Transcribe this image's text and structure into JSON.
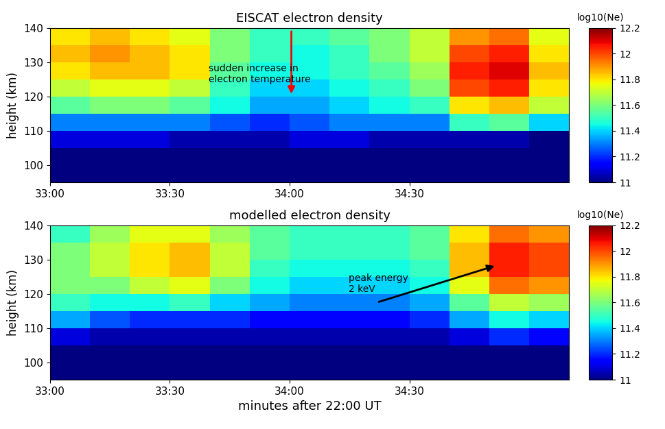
{
  "chart_data": [
    {
      "type": "heatmap",
      "title": "EISCAT electron density",
      "y_label": "height (km)",
      "color": "jet",
      "x_edges": [
        1980,
        1990,
        2000,
        2010,
        2020,
        2030,
        2040,
        2050,
        2060,
        2070,
        2080,
        2090,
        2100,
        2110
      ],
      "y_edges": [
        95,
        100,
        105,
        110,
        115,
        120,
        125,
        130,
        135,
        140
      ],
      "cells": [
        [
          11.0,
          11.0,
          11.0,
          11.0,
          11.0,
          11.0,
          11.0,
          11.0,
          11.0,
          11.0,
          11.0,
          11.0,
          11.0
        ],
        [
          11.0,
          11.0,
          11.0,
          11.0,
          11.0,
          11.0,
          11.0,
          11.0,
          11.0,
          11.0,
          11.0,
          11.0,
          11.0
        ],
        [
          11.1,
          11.1,
          11.1,
          11.05,
          11.05,
          11.05,
          11.1,
          11.1,
          11.05,
          11.05,
          11.05,
          11.05,
          11.0
        ],
        [
          11.3,
          11.3,
          11.3,
          11.3,
          11.25,
          11.2,
          11.25,
          11.3,
          11.3,
          11.3,
          11.5,
          11.55,
          11.4
        ],
        [
          11.55,
          11.6,
          11.6,
          11.55,
          11.45,
          11.35,
          11.35,
          11.4,
          11.45,
          11.5,
          11.8,
          11.85,
          11.7
        ],
        [
          11.7,
          11.75,
          11.75,
          11.7,
          11.5,
          11.4,
          11.4,
          11.45,
          11.5,
          11.6,
          12.0,
          12.05,
          11.8
        ],
        [
          11.8,
          11.85,
          11.85,
          11.8,
          11.55,
          11.45,
          11.45,
          11.5,
          11.55,
          11.65,
          12.05,
          12.1,
          11.85
        ],
        [
          11.85,
          11.9,
          11.85,
          11.8,
          11.6,
          11.5,
          11.45,
          11.5,
          11.6,
          11.7,
          12.0,
          12.05,
          11.8
        ],
        [
          11.8,
          11.85,
          11.8,
          11.75,
          11.6,
          11.5,
          11.5,
          11.55,
          11.6,
          11.7,
          11.9,
          11.95,
          11.75
        ]
      ],
      "xlim": [
        1980,
        2110
      ],
      "ylim": [
        95,
        140
      ],
      "xticks": [
        {
          "value": 1980,
          "label": "33:00"
        },
        {
          "value": 2010,
          "label": "33:30"
        },
        {
          "value": 2040,
          "label": "34:00"
        },
        {
          "value": 2070,
          "label": "34:30"
        }
      ],
      "yticks": [
        100,
        110,
        120,
        130,
        140
      ],
      "colorbar_label": "log10(Ne)",
      "colorbar_range": [
        11,
        12.2
      ],
      "colorbar_ticks": [
        11,
        11.2,
        11.4,
        11.6,
        11.8,
        12,
        12.2
      ],
      "annotations": [
        {
          "text": "sudden increase in\nelectron temperature",
          "color": "red"
        }
      ]
    },
    {
      "type": "heatmap",
      "title": "modelled electron density",
      "y_label": "height (km)",
      "x_label": "minutes after 22:00 UT",
      "color": "jet",
      "x_edges": [
        1980,
        1990,
        2000,
        2010,
        2020,
        2030,
        2040,
        2050,
        2060,
        2070,
        2080,
        2090,
        2100,
        2110
      ],
      "y_edges": [
        95,
        100,
        105,
        110,
        115,
        120,
        125,
        130,
        135,
        140
      ],
      "cells": [
        [
          11.0,
          11.0,
          11.0,
          11.0,
          11.0,
          11.0,
          11.0,
          11.0,
          11.0,
          11.0,
          11.0,
          11.0,
          11.0
        ],
        [
          11.0,
          11.0,
          11.0,
          11.0,
          11.0,
          11.0,
          11.0,
          11.0,
          11.0,
          11.0,
          11.0,
          11.0,
          11.0
        ],
        [
          11.1,
          11.05,
          11.05,
          11.05,
          11.05,
          11.05,
          11.05,
          11.05,
          11.05,
          11.05,
          11.1,
          11.2,
          11.15
        ],
        [
          11.35,
          11.25,
          11.2,
          11.2,
          11.2,
          11.15,
          11.15,
          11.15,
          11.15,
          11.2,
          11.35,
          11.45,
          11.4
        ],
        [
          11.5,
          11.45,
          11.45,
          11.5,
          11.4,
          11.35,
          11.3,
          11.3,
          11.3,
          11.35,
          11.55,
          11.7,
          11.65
        ],
        [
          11.6,
          11.6,
          11.7,
          11.75,
          11.6,
          11.45,
          11.4,
          11.4,
          11.4,
          11.45,
          11.75,
          11.95,
          11.9
        ],
        [
          11.6,
          11.7,
          11.8,
          11.85,
          11.7,
          11.5,
          11.45,
          11.45,
          11.45,
          11.5,
          11.85,
          12.05,
          12.0
        ],
        [
          11.6,
          11.7,
          11.8,
          11.85,
          11.7,
          11.55,
          11.5,
          11.5,
          11.5,
          11.55,
          11.85,
          12.05,
          12.0
        ],
        [
          11.5,
          11.65,
          11.75,
          11.75,
          11.65,
          11.55,
          11.5,
          11.5,
          11.5,
          11.55,
          11.8,
          11.95,
          11.9
        ]
      ],
      "xlim": [
        1980,
        2110
      ],
      "ylim": [
        95,
        140
      ],
      "xticks": [
        {
          "value": 1980,
          "label": "33:00"
        },
        {
          "value": 2010,
          "label": "33:30"
        },
        {
          "value": 2040,
          "label": "34:00"
        },
        {
          "value": 2070,
          "label": "34:30"
        }
      ],
      "yticks": [
        100,
        110,
        120,
        130,
        140
      ],
      "colorbar_label": "log10(Ne)",
      "colorbar_range": [
        11,
        12.2
      ],
      "colorbar_ticks": [
        11,
        11.2,
        11.4,
        11.6,
        11.8,
        12,
        12.2
      ],
      "annotations": [
        {
          "text": "peak energy\n2 keV",
          "color": "black"
        }
      ]
    }
  ]
}
